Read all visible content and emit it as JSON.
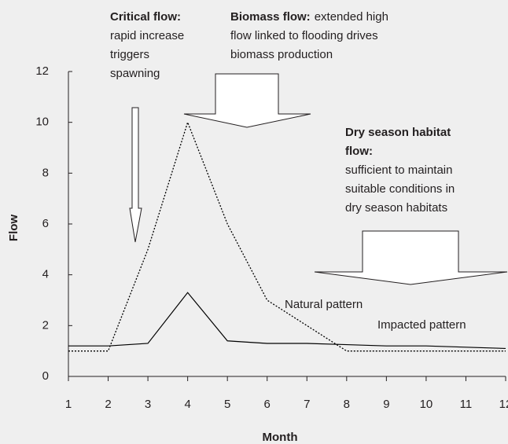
{
  "chart_data": {
    "type": "line",
    "x_label": "Month",
    "y_label": "Flow",
    "x": [
      1,
      2,
      3,
      4,
      5,
      6,
      7,
      8,
      9,
      10,
      11,
      12
    ],
    "series": [
      {
        "name": "Natural pattern",
        "color": "#000000",
        "dash": "dotted",
        "values": [
          1,
          1,
          5,
          10,
          6,
          3,
          2,
          1,
          1,
          1,
          1,
          1
        ]
      },
      {
        "name": "Impacted pattern",
        "color": "#000000",
        "dash": "solid",
        "values": [
          1.2,
          1.2,
          1.3,
          3.3,
          1.4,
          1.3,
          1.3,
          1.25,
          1.2,
          1.2,
          1.15,
          1.1
        ]
      }
    ],
    "xlim": [
      1,
      12
    ],
    "xticks": [
      1,
      2,
      3,
      4,
      5,
      6,
      7,
      8,
      9,
      10,
      11,
      12
    ],
    "ylim": [
      0,
      12
    ],
    "yticks": [
      0,
      2,
      4,
      6,
      8,
      10,
      12
    ],
    "grid": false,
    "annotations": [
      {
        "title": [
          "Critical flow:"
        ],
        "text": [
          "rapid increase",
          "triggers",
          "spawning"
        ]
      },
      {
        "title": [
          "Biomass flow:"
        ],
        "text": [
          "extended high",
          "flow linked to flooding drives",
          "biomass production"
        ]
      },
      {
        "title": [
          "Dry season habitat",
          "flow:"
        ],
        "text": [
          "sufficient to maintain",
          "suitable conditions in",
          "dry season habitats"
        ]
      }
    ]
  }
}
